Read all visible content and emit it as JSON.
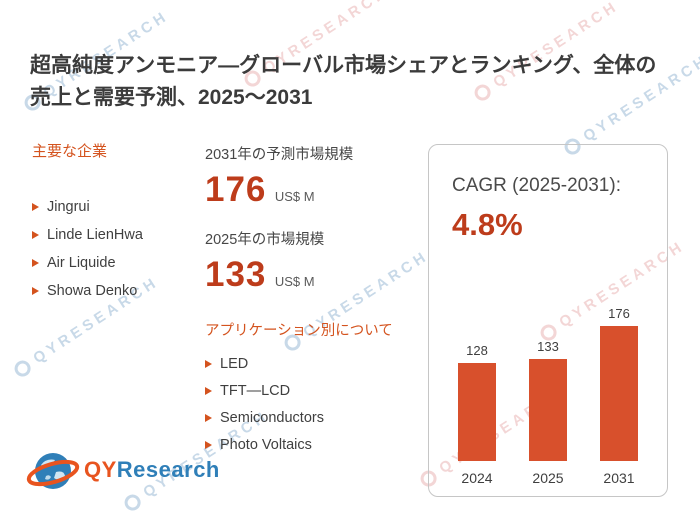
{
  "title": "超高純度アンモニア―グローバル市場シェアとランキング、全体の売上と需要予測、2025～2031",
  "key_companies": {
    "heading": "主要な企業",
    "items": [
      "Jingrui",
      "Linde LienHwa",
      "Air Liquide",
      "Showa Denko"
    ]
  },
  "market_size": {
    "forecast_label": "2031年の予測市場規模",
    "forecast_value": "176",
    "forecast_unit": "US$ M",
    "current_label": "2025年の市場規模",
    "current_value": "133",
    "current_unit": "US$ M"
  },
  "applications": {
    "heading": "アプリケーション別について",
    "items": [
      "LED",
      "TFT—LCD",
      "Semiconductors",
      "Photo Voltaics"
    ]
  },
  "cagr": {
    "label": "CAGR (2025-2031):",
    "value": "4.8%"
  },
  "chart_data": {
    "type": "bar",
    "categories": [
      "2024",
      "2025",
      "2031"
    ],
    "values": [
      128,
      133,
      176
    ],
    "title": "",
    "xlabel": "",
    "ylabel": "",
    "ylim": [
      0,
      176
    ],
    "bar_color": "#d8502c",
    "legend": "none",
    "grid": false
  },
  "logo": {
    "qy": "QY",
    "research": "Research"
  },
  "watermark": {
    "text": "QYRESEARCH"
  },
  "colors": {
    "accent": "#bd3c1b",
    "heading_orange": "#d4531e",
    "text_dark": "#3b3b3b"
  }
}
